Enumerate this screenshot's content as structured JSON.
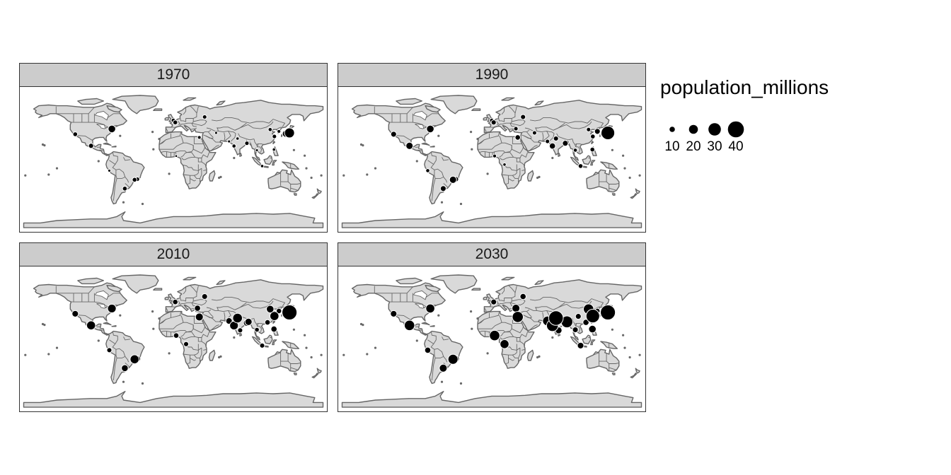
{
  "facets": [
    "1970",
    "1990",
    "2010",
    "2030"
  ],
  "legend": {
    "title": "population_millions",
    "breaks": [
      10,
      20,
      30,
      40
    ],
    "labels": [
      "10",
      "20",
      "30",
      "40"
    ]
  },
  "colors": {
    "point": "#000000",
    "point_outline": "#ffffff",
    "land": "#d9d9d9",
    "border": "#666666",
    "strip": "#cccccc"
  },
  "chart_data": {
    "type": "map-bubble",
    "size_variable": "population_millions",
    "points_by_year": {
      "1970": [
        {
          "lon": -74,
          "lat": 40.7,
          "pop": 16
        },
        {
          "lon": -118,
          "lat": 34,
          "pop": 8
        },
        {
          "lon": -99,
          "lat": 19.4,
          "pop": 9
        },
        {
          "lon": -46.6,
          "lat": -23.5,
          "pop": 8
        },
        {
          "lon": -43.2,
          "lat": -22.9,
          "pop": 7
        },
        {
          "lon": -58.4,
          "lat": -34.6,
          "pop": 8
        },
        {
          "lon": -77,
          "lat": -12,
          "pop": 3
        },
        {
          "lon": 0,
          "lat": 51.5,
          "pop": 7
        },
        {
          "lon": 2.3,
          "lat": 48.9,
          "pop": 8
        },
        {
          "lon": 37.6,
          "lat": 55.8,
          "pop": 7
        },
        {
          "lon": 31.2,
          "lat": 30,
          "pop": 5
        },
        {
          "lon": 3.4,
          "lat": 6.5,
          "pop": 2
        },
        {
          "lon": 72.9,
          "lat": 19.1,
          "pop": 6
        },
        {
          "lon": 88.4,
          "lat": 22.6,
          "pop": 7
        },
        {
          "lon": 77.2,
          "lat": 28.6,
          "pop": 4
        },
        {
          "lon": 51.4,
          "lat": 35.7,
          "pop": 3
        },
        {
          "lon": 67,
          "lat": 24.9,
          "pop": 3
        },
        {
          "lon": 90.4,
          "lat": 23.8,
          "pop": 2
        },
        {
          "lon": 116.4,
          "lat": 39.9,
          "pop": 6
        },
        {
          "lon": 121.5,
          "lat": 31.2,
          "pop": 7
        },
        {
          "lon": 139.7,
          "lat": 35.7,
          "pop": 23
        },
        {
          "lon": 135.5,
          "lat": 34.7,
          "pop": 15
        },
        {
          "lon": 127,
          "lat": 37.6,
          "pop": 5
        },
        {
          "lon": 121,
          "lat": 14.6,
          "pop": 4
        },
        {
          "lon": 106.8,
          "lat": -6.2,
          "pop": 4
        },
        {
          "lon": 100.5,
          "lat": 13.8,
          "pop": 3
        }
      ],
      "1990": [
        {
          "lon": -74,
          "lat": 40.7,
          "pop": 16
        },
        {
          "lon": -118,
          "lat": 34,
          "pop": 11
        },
        {
          "lon": -99,
          "lat": 19.4,
          "pop": 15
        },
        {
          "lon": -46.6,
          "lat": -23.5,
          "pop": 15
        },
        {
          "lon": -43.2,
          "lat": -22.9,
          "pop": 10
        },
        {
          "lon": -58.4,
          "lat": -34.6,
          "pop": 11
        },
        {
          "lon": -77,
          "lat": -12,
          "pop": 6
        },
        {
          "lon": 2.3,
          "lat": 48.9,
          "pop": 9
        },
        {
          "lon": 0,
          "lat": 51.5,
          "pop": 7
        },
        {
          "lon": 37.6,
          "lat": 55.8,
          "pop": 9
        },
        {
          "lon": 31.2,
          "lat": 30,
          "pop": 10
        },
        {
          "lon": 29,
          "lat": 41,
          "pop": 7
        },
        {
          "lon": 3.4,
          "lat": 6.5,
          "pop": 5
        },
        {
          "lon": 15.3,
          "lat": -4.3,
          "pop": 4
        },
        {
          "lon": 72.9,
          "lat": 19.1,
          "pop": 12
        },
        {
          "lon": 88.4,
          "lat": 22.6,
          "pop": 11
        },
        {
          "lon": 77.2,
          "lat": 28.6,
          "pop": 9
        },
        {
          "lon": 67,
          "lat": 24.9,
          "pop": 7
        },
        {
          "lon": 90.4,
          "lat": 23.8,
          "pop": 7
        },
        {
          "lon": 51.4,
          "lat": 35.7,
          "pop": 7
        },
        {
          "lon": 116.4,
          "lat": 39.9,
          "pop": 7
        },
        {
          "lon": 121.5,
          "lat": 31.2,
          "pop": 8
        },
        {
          "lon": 139.7,
          "lat": 35.7,
          "pop": 33
        },
        {
          "lon": 135.5,
          "lat": 34.7,
          "pop": 18
        },
        {
          "lon": 127,
          "lat": 37.6,
          "pop": 11
        },
        {
          "lon": 121,
          "lat": 14.6,
          "pop": 8
        },
        {
          "lon": 106.8,
          "lat": -6.2,
          "pop": 8
        },
        {
          "lon": 100.5,
          "lat": 13.8,
          "pop": 6
        }
      ],
      "2010": [
        {
          "lon": -74,
          "lat": 40.7,
          "pop": 19
        },
        {
          "lon": -118,
          "lat": 34,
          "pop": 13
        },
        {
          "lon": -99,
          "lat": 19.4,
          "pop": 20
        },
        {
          "lon": -46.6,
          "lat": -23.5,
          "pop": 20
        },
        {
          "lon": -43.2,
          "lat": -22.9,
          "pop": 12
        },
        {
          "lon": -58.4,
          "lat": -34.6,
          "pop": 14
        },
        {
          "lon": -77,
          "lat": -12,
          "pop": 9
        },
        {
          "lon": 2.3,
          "lat": 48.9,
          "pop": 10
        },
        {
          "lon": 37.6,
          "lat": 55.8,
          "pop": 11
        },
        {
          "lon": 29,
          "lat": 41,
          "pop": 12
        },
        {
          "lon": 31.2,
          "lat": 30,
          "pop": 17
        },
        {
          "lon": 3.4,
          "lat": 6.5,
          "pop": 10
        },
        {
          "lon": 15.3,
          "lat": -4.3,
          "pop": 9
        },
        {
          "lon": 72.9,
          "lat": 19.1,
          "pop": 19
        },
        {
          "lon": 88.4,
          "lat": 22.6,
          "pop": 14
        },
        {
          "lon": 77.2,
          "lat": 28.6,
          "pop": 22
        },
        {
          "lon": 67,
          "lat": 24.9,
          "pop": 13
        },
        {
          "lon": 90.4,
          "lat": 23.8,
          "pop": 15
        },
        {
          "lon": 80.3,
          "lat": 13.1,
          "pop": 9
        },
        {
          "lon": 116.4,
          "lat": 39.9,
          "pop": 16
        },
        {
          "lon": 121.5,
          "lat": 31.2,
          "pop": 20
        },
        {
          "lon": 113.3,
          "lat": 23.1,
          "pop": 10
        },
        {
          "lon": 139.7,
          "lat": 35.7,
          "pop": 37
        },
        {
          "lon": 135.5,
          "lat": 34.7,
          "pop": 19
        },
        {
          "lon": 127,
          "lat": 37.6,
          "pop": 10
        },
        {
          "lon": 121,
          "lat": 14.6,
          "pop": 12
        },
        {
          "lon": 106.8,
          "lat": -6.2,
          "pop": 9
        },
        {
          "lon": 100.5,
          "lat": 13.8,
          "pop": 8
        }
      ],
      "2030": [
        {
          "lon": -74,
          "lat": 40.7,
          "pop": 20
        },
        {
          "lon": -118,
          "lat": 34,
          "pop": 13
        },
        {
          "lon": -99,
          "lat": 19.4,
          "pop": 24
        },
        {
          "lon": -46.6,
          "lat": -23.5,
          "pop": 23
        },
        {
          "lon": -43.2,
          "lat": -22.9,
          "pop": 14
        },
        {
          "lon": -58.4,
          "lat": -34.6,
          "pop": 17
        },
        {
          "lon": -77,
          "lat": -12,
          "pop": 12
        },
        {
          "lon": 2.3,
          "lat": 48.9,
          "pop": 11
        },
        {
          "lon": 37.6,
          "lat": 55.8,
          "pop": 12
        },
        {
          "lon": 29,
          "lat": 41,
          "pop": 17
        },
        {
          "lon": 31.2,
          "lat": 30,
          "pop": 26
        },
        {
          "lon": 3.4,
          "lat": 6.5,
          "pop": 24
        },
        {
          "lon": 15.3,
          "lat": -4.3,
          "pop": 20
        },
        {
          "lon": 72.9,
          "lat": 19.1,
          "pop": 28
        },
        {
          "lon": 88.4,
          "lat": 22.6,
          "pop": 19
        },
        {
          "lon": 77.2,
          "lat": 28.6,
          "pop": 36
        },
        {
          "lon": 67,
          "lat": 24.9,
          "pop": 22
        },
        {
          "lon": 90.4,
          "lat": 23.8,
          "pop": 28
        },
        {
          "lon": 80.3,
          "lat": 13.1,
          "pop": 14
        },
        {
          "lon": 116.4,
          "lat": 39.9,
          "pop": 24
        },
        {
          "lon": 121.5,
          "lat": 31.2,
          "pop": 33
        },
        {
          "lon": 113.3,
          "lat": 23.1,
          "pop": 12
        },
        {
          "lon": 104.1,
          "lat": 30.7,
          "pop": 11
        },
        {
          "lon": 139.7,
          "lat": 35.7,
          "pop": 37
        },
        {
          "lon": 135.5,
          "lat": 34.7,
          "pop": 19
        },
        {
          "lon": 127,
          "lat": 37.6,
          "pop": 10
        },
        {
          "lon": 121,
          "lat": 14.6,
          "pop": 16
        },
        {
          "lon": 106.8,
          "lat": -6.2,
          "pop": 13
        },
        {
          "lon": 100.5,
          "lat": 13.8,
          "pop": 11
        }
      ]
    }
  }
}
